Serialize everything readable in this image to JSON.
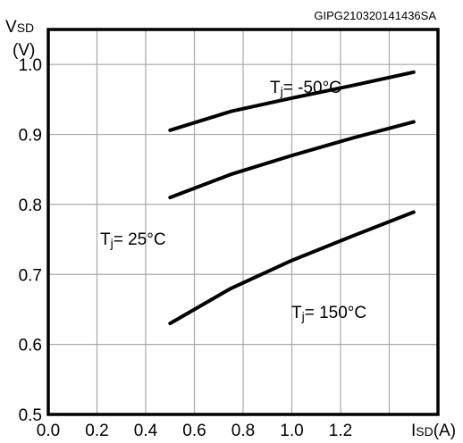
{
  "chart_data": {
    "type": "line",
    "code": "GIPG210320141436SA",
    "ylabel_main": "V",
    "ylabel_sub": "SD",
    "yunit": "(V)",
    "xlabel_main": "I",
    "xlabel_sub": "SD",
    "xunit": "(A)",
    "xlim": [
      0.0,
      1.6
    ],
    "ylim": [
      0.5,
      1.0
    ],
    "ylim_plot": [
      0.5,
      1.05
    ],
    "x_ticks": [
      "0.0",
      "0.2",
      "0.4",
      "0.6",
      "0.8",
      "1.0",
      "1.2"
    ],
    "y_ticks": [
      "0.5",
      "0.6",
      "0.7",
      "0.8",
      "0.9",
      "1.0"
    ],
    "grid": true,
    "series": [
      {
        "name": "Tj= -50°C",
        "label_main": "T",
        "label_sub": "j",
        "label_rest": "= -50°C",
        "x": [
          0.5,
          0.75,
          1.0,
          1.25,
          1.5
        ],
        "y": [
          0.906,
          0.933,
          0.952,
          0.97,
          0.989
        ]
      },
      {
        "name": "Tj= 25°C",
        "label_main": "T",
        "label_sub": "j",
        "label_rest": "= 25°C",
        "x": [
          0.5,
          0.75,
          1.0,
          1.25,
          1.5
        ],
        "y": [
          0.81,
          0.843,
          0.87,
          0.895,
          0.918
        ]
      },
      {
        "name": "Tj= 150°C",
        "label_main": "T",
        "label_sub": "j",
        "label_rest": "= 150°C",
        "x": [
          0.5,
          0.75,
          1.0,
          1.25,
          1.5
        ],
        "y": [
          0.63,
          0.68,
          0.72,
          0.755,
          0.789
        ]
      }
    ]
  }
}
